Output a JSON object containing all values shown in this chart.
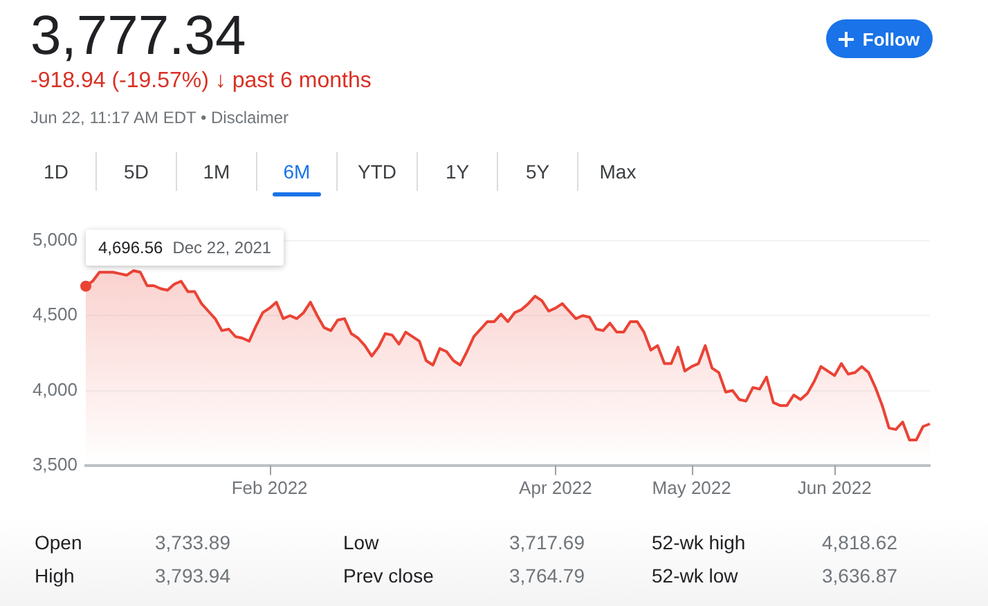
{
  "chart_data": {
    "type": "area",
    "title": "3,777.34",
    "subtitle": "-918.94 (-19.57%) ↓ past 6 months",
    "annotations": [
      "Jun 22, 11:17 AM EDT • Disclaimer",
      "Follow",
      "1D",
      "5D",
      "1M",
      "6M",
      "YTD",
      "1Y",
      "5Y",
      "Max",
      "4,696.56",
      "Dec 22, 2021",
      "Open",
      "3,733.89",
      "Low",
      "3,717.69",
      "52-wk high",
      "4,818.62",
      "High",
      "3,793.94",
      "Prev close",
      "3,764.79",
      "52-wk low",
      "3,636.87"
    ],
    "categories": [
      null,
      null,
      null,
      null,
      null,
      null,
      null,
      null,
      null,
      null,
      null,
      null,
      null,
      null,
      null,
      null,
      null,
      null,
      null,
      null,
      null,
      null,
      null,
      null,
      null,
      null,
      null,
      "Feb 2022",
      null,
      null,
      null,
      null,
      null,
      null,
      null,
      null,
      null,
      null,
      null,
      null,
      null,
      null,
      null,
      null,
      null,
      null,
      null,
      null,
      null,
      null,
      null,
      null,
      null,
      null,
      null,
      null,
      null,
      null,
      null,
      null,
      null,
      null,
      null,
      null,
      null,
      null,
      null,
      null,
      null,
      "Apr 2022",
      null,
      null,
      null,
      null,
      null,
      null,
      null,
      null,
      null,
      null,
      null,
      null,
      null,
      null,
      null,
      null,
      null,
      null,
      null,
      "May 2022",
      null,
      null,
      null,
      null,
      null,
      null,
      null,
      null,
      null,
      null,
      null,
      null,
      null,
      null,
      null,
      null,
      null,
      null,
      null,
      null,
      "Jun 2022",
      null,
      null,
      null,
      null,
      null,
      null,
      null,
      null,
      null,
      null,
      null,
      null,
      null,
      null
    ],
    "series": [
      {
        "color": "#ea4335",
        "values": [
          4696.56,
          4730,
          4790,
          4790,
          4790,
          4780,
          4770,
          4800,
          4790,
          4700,
          4700,
          4680,
          4670,
          4710,
          4730,
          4660,
          4660,
          4580,
          4530,
          4480,
          4400,
          4410,
          4360,
          4350,
          4330,
          4430,
          4520,
          4550,
          4590,
          4480,
          4500,
          4480,
          4520,
          4590,
          4500,
          4420,
          4400,
          4470,
          4480,
          4380,
          4350,
          4300,
          4230,
          4290,
          4380,
          4370,
          4310,
          4390,
          4360,
          4330,
          4200,
          4170,
          4280,
          4260,
          4200,
          4170,
          4260,
          4360,
          4410,
          4460,
          4460,
          4510,
          4460,
          4520,
          4540,
          4580,
          4630,
          4600,
          4530,
          4550,
          4580,
          4530,
          4480,
          4500,
          4490,
          4410,
          4400,
          4450,
          4390,
          4390,
          4460,
          4460,
          4390,
          4270,
          4300,
          4180,
          4180,
          4290,
          4130,
          4160,
          4180,
          4300,
          4150,
          4120,
          3990,
          4000,
          3940,
          3930,
          4020,
          4010,
          4090,
          3920,
          3900,
          3900,
          3970,
          3940,
          3980,
          4060,
          4160,
          4130,
          4100,
          4180,
          4110,
          4120,
          4160,
          4120,
          4020,
          3900,
          3750,
          3740,
          3790,
          3670,
          3670,
          3760,
          3777.34
        ]
      }
    ],
    "ylim": [
      3500,
      5000
    ],
    "yticks": [
      {
        "value": 3500,
        "label": "3,500"
      },
      {
        "value": 4000,
        "label": "4,000"
      },
      {
        "value": 4500,
        "label": "4,500"
      },
      {
        "value": 5000,
        "label": "5,000"
      }
    ],
    "grid": "y",
    "legend": false,
    "marker": "none",
    "line_style": "solid"
  }
}
